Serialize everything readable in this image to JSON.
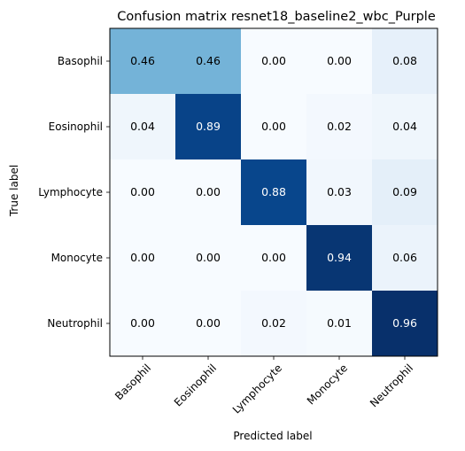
{
  "chart_data": {
    "type": "heatmap",
    "title": "Confusion matrix resnet18_baseline2_wbc_Purple",
    "xlabel": "Predicted label",
    "ylabel": "True label",
    "x_categories": [
      "Basophil",
      "Eosinophil",
      "Lymphocyte",
      "Monocyte",
      "Neutrophil"
    ],
    "y_categories": [
      "Basophil",
      "Eosinophil",
      "Lymphocyte",
      "Monocyte",
      "Neutrophil"
    ],
    "values": [
      [
        0.46,
        0.46,
        0.0,
        0.0,
        0.08
      ],
      [
        0.04,
        0.89,
        0.0,
        0.02,
        0.04
      ],
      [
        0.0,
        0.0,
        0.88,
        0.03,
        0.09
      ],
      [
        0.0,
        0.0,
        0.0,
        0.94,
        0.06
      ],
      [
        0.0,
        0.0,
        0.02,
        0.01,
        0.96
      ]
    ],
    "value_labels": [
      [
        "0.46",
        "0.46",
        "0.00",
        "0.00",
        "0.08"
      ],
      [
        "0.04",
        "0.89",
        "0.00",
        "0.02",
        "0.04"
      ],
      [
        "0.00",
        "0.00",
        "0.88",
        "0.03",
        "0.09"
      ],
      [
        "0.00",
        "0.00",
        "0.00",
        "0.94",
        "0.06"
      ],
      [
        "0.00",
        "0.00",
        "0.02",
        "0.01",
        "0.96"
      ]
    ],
    "colormap": "Blues",
    "vmin": 0.0,
    "vmax": 0.96,
    "grid": false,
    "legend": "none"
  }
}
